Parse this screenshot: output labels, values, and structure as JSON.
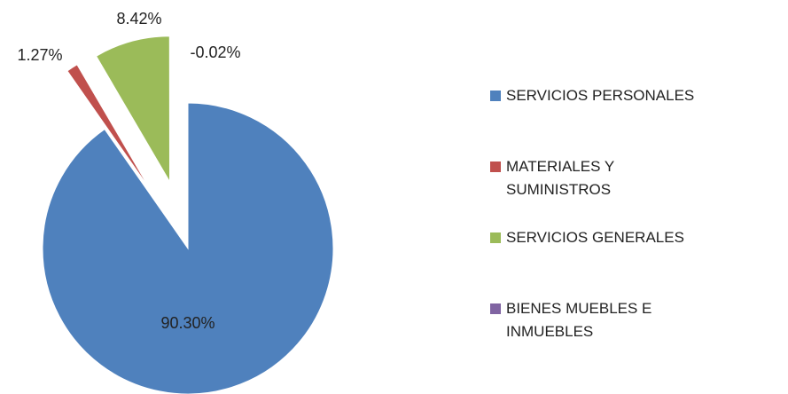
{
  "chart_data": {
    "type": "pie",
    "categories": [
      "SERVICIOS PERSONALES",
      "MATERIALES Y SUMINISTROS",
      "SERVICIOS GENERALES",
      "BIENES MUEBLES E INMUEBLES"
    ],
    "values": [
      90.3,
      1.27,
      8.42,
      -0.02
    ],
    "value_labels": [
      "90.30%",
      "1.27%",
      "8.42%",
      "-0.02%"
    ],
    "colors": [
      "#4f81bd",
      "#c0504d",
      "#9bbb59",
      "#8064a2"
    ],
    "legend": "right"
  }
}
